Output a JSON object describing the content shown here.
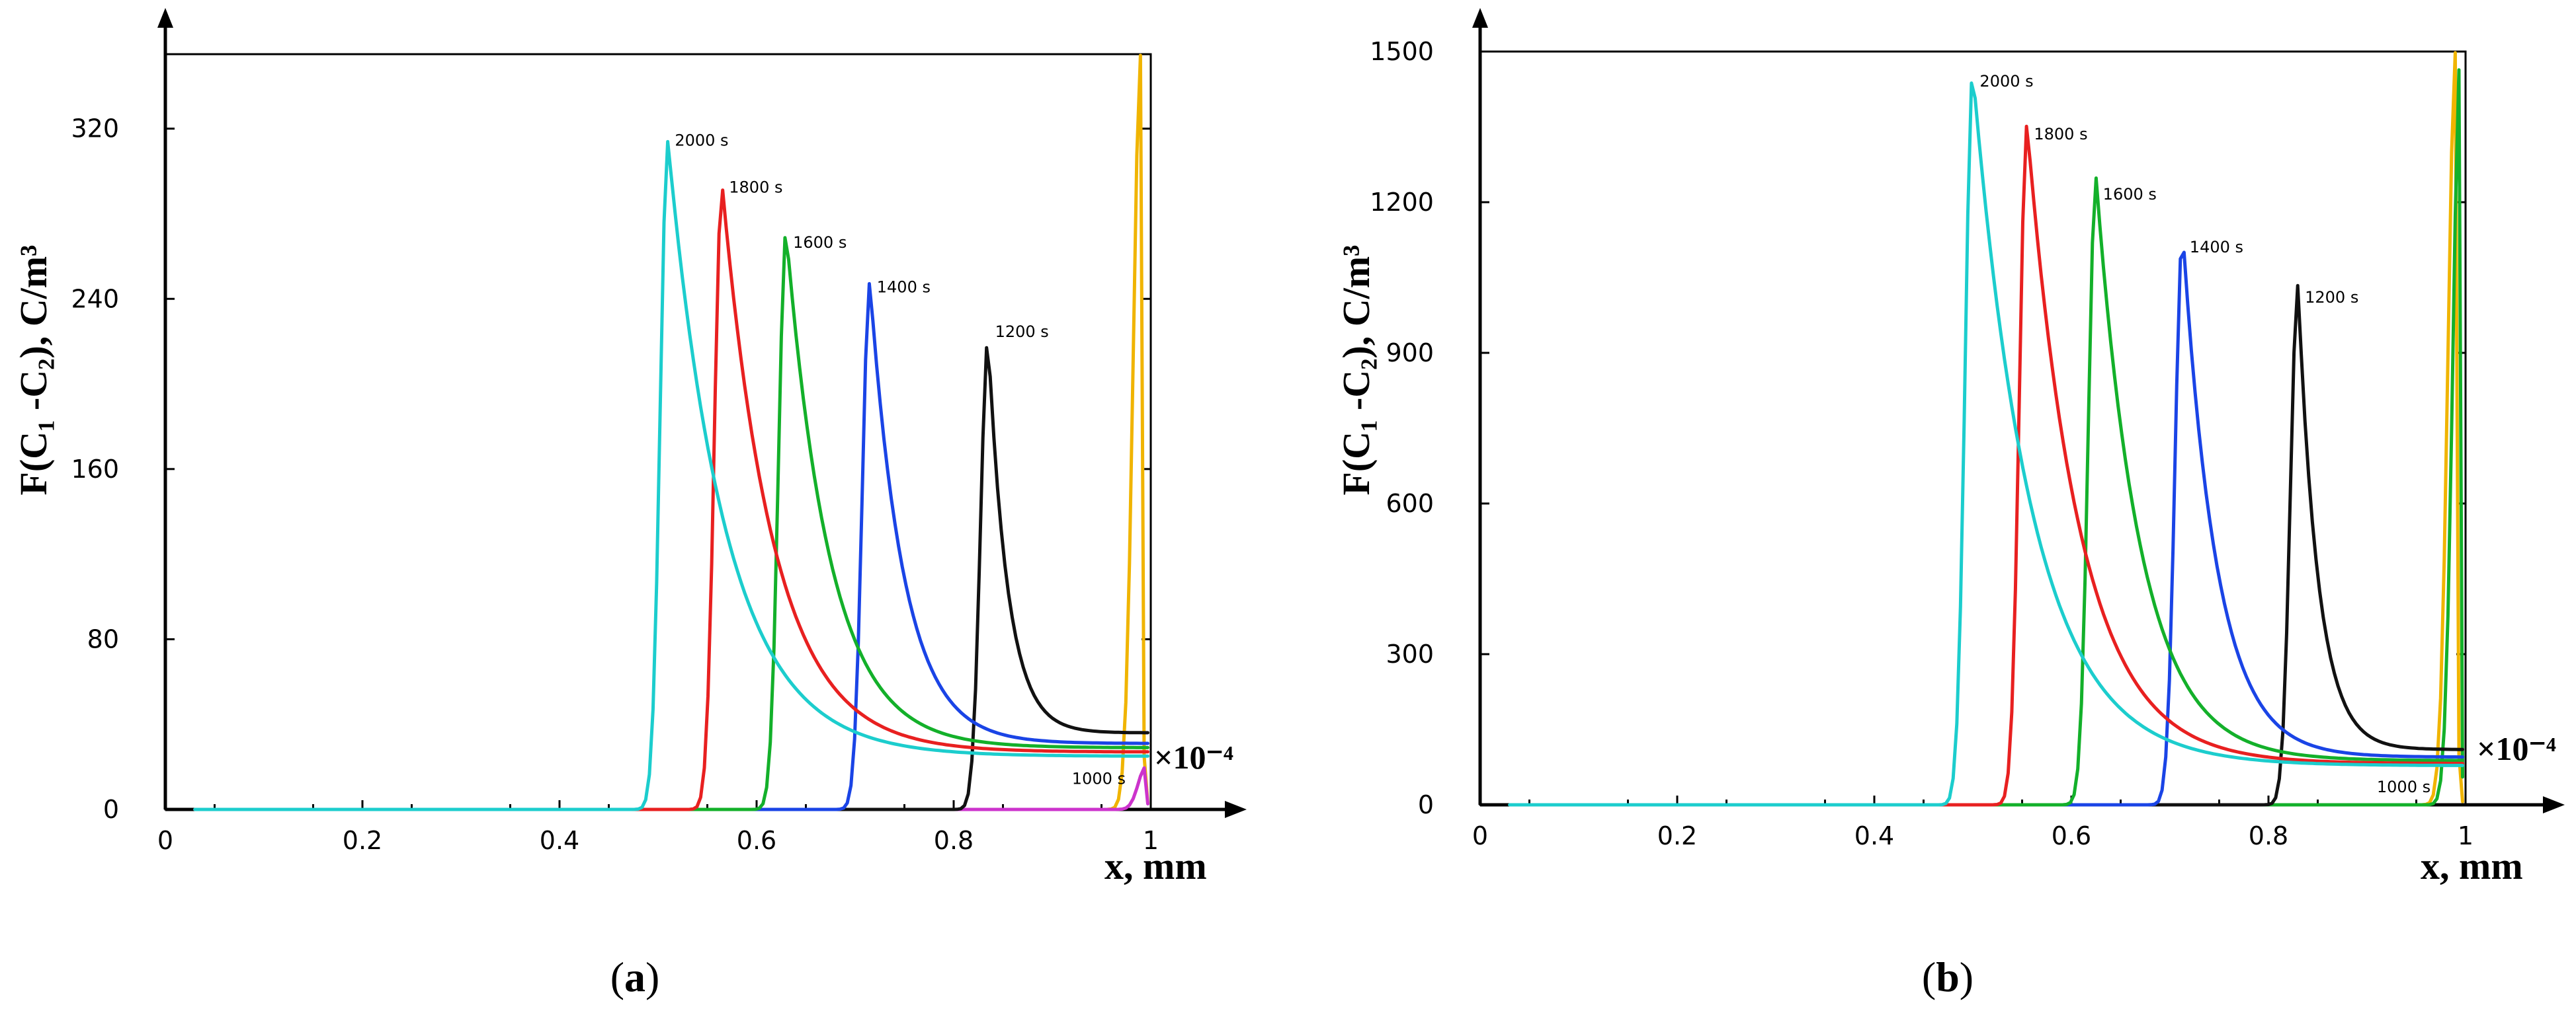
{
  "chart_data": [
    {
      "type": "line",
      "panel": "(a)",
      "caption_main": "a",
      "ylabel": "F(C₁ -C₂), C/m³",
      "xlabel": "x, mm",
      "x_multiplier": "×10⁻⁴",
      "xlim": [
        0,
        1
      ],
      "ylim": [
        0,
        355
      ],
      "x_ticks": [
        {
          "value": 0,
          "label": "0"
        },
        {
          "value": 0.2,
          "label": "0.2"
        },
        {
          "value": 0.4,
          "label": "0.4"
        },
        {
          "value": 0.6,
          "label": "0.6"
        },
        {
          "value": 0.8,
          "label": "0.8"
        },
        {
          "value": 1,
          "label": "1"
        }
      ],
      "y_ticks": [
        {
          "value": 0,
          "label": "0"
        },
        {
          "value": 80,
          "label": "80"
        },
        {
          "value": 160,
          "label": "160"
        },
        {
          "value": 240,
          "label": "240"
        },
        {
          "value": 320,
          "label": "320"
        }
      ],
      "series": [
        {
          "name": "1000 s",
          "color": "#f0b400",
          "peak_x": 0.99,
          "peak_y": 355,
          "tail_y": 2,
          "label_x": 0.92,
          "label_y": 12
        },
        {
          "name": "1000 s (edge)",
          "color": "#cc33cc",
          "peak_x": 0.995,
          "peak_y": 20,
          "tail_y": 2,
          "label_x": null,
          "label_y": null
        },
        {
          "name": "1200 s",
          "color": "#111111",
          "peak_x": 0.835,
          "peak_y": 222,
          "tail_y": 36,
          "label_x": 0.842,
          "label_y": 222
        },
        {
          "name": "1400 s",
          "color": "#1a44e6",
          "peak_x": 0.715,
          "peak_y": 248,
          "tail_y": 31,
          "label_x": 0.722,
          "label_y": 243
        },
        {
          "name": "1600 s",
          "color": "#13b02a",
          "peak_x": 0.63,
          "peak_y": 272,
          "tail_y": 29,
          "label_x": 0.637,
          "label_y": 264
        },
        {
          "name": "1800 s",
          "color": "#e82020",
          "peak_x": 0.565,
          "peak_y": 294,
          "tail_y": 27,
          "label_x": 0.572,
          "label_y": 290
        },
        {
          "name": "2000 s",
          "color": "#1ccdcd",
          "peak_x": 0.51,
          "peak_y": 314,
          "tail_y": 25,
          "label_x": 0.517,
          "label_y": 312
        }
      ]
    },
    {
      "type": "line",
      "panel": "(b)",
      "caption_main": "b",
      "ylabel": "F(C₁ -C₂), C/m³",
      "xlabel": "x, mm",
      "x_multiplier": "×10⁻⁴",
      "xlim": [
        0,
        1
      ],
      "ylim": [
        0,
        1500
      ],
      "x_ticks": [
        {
          "value": 0,
          "label": "0"
        },
        {
          "value": 0.2,
          "label": "0.2"
        },
        {
          "value": 0.4,
          "label": "0.4"
        },
        {
          "value": 0.6,
          "label": "0.6"
        },
        {
          "value": 0.8,
          "label": "0.8"
        },
        {
          "value": 1,
          "label": "1"
        }
      ],
      "y_ticks": [
        {
          "value": 0,
          "label": "0"
        },
        {
          "value": 300,
          "label": "300"
        },
        {
          "value": 600,
          "label": "600"
        },
        {
          "value": 900,
          "label": "900"
        },
        {
          "value": 1200,
          "label": "1200"
        },
        {
          "value": 1500,
          "label": "1500"
        }
      ],
      "series": [
        {
          "name": "1000 s",
          "color": "#f0b400",
          "peak_x": 0.99,
          "peak_y": 1500,
          "tail_y": 2,
          "label_x": 0.91,
          "label_y": 25
        },
        {
          "name": "1000 s (edge)",
          "color": "#13b02a",
          "peak_x": 0.995,
          "peak_y": 1500,
          "tail_y": 2,
          "label_x": null,
          "label_y": null
        },
        {
          "name": "1200 s",
          "color": "#111111",
          "peak_x": 0.83,
          "peak_y": 1035,
          "tail_y": 110,
          "label_x": 0.837,
          "label_y": 1000
        },
        {
          "name": "1400 s",
          "color": "#1a44e6",
          "peak_x": 0.713,
          "peak_y": 1140,
          "tail_y": 95,
          "label_x": 0.72,
          "label_y": 1100
        },
        {
          "name": "1600 s",
          "color": "#13b02a",
          "peak_x": 0.625,
          "peak_y": 1250,
          "tail_y": 88,
          "label_x": 0.632,
          "label_y": 1205
        },
        {
          "name": "1800 s",
          "color": "#e82020",
          "peak_x": 0.555,
          "peak_y": 1355,
          "tail_y": 82,
          "label_x": 0.562,
          "label_y": 1325
        },
        {
          "name": "2000 s",
          "color": "#1ccdcd",
          "peak_x": 0.5,
          "peak_y": 1460,
          "tail_y": 78,
          "label_x": 0.507,
          "label_y": 1430
        }
      ]
    }
  ]
}
